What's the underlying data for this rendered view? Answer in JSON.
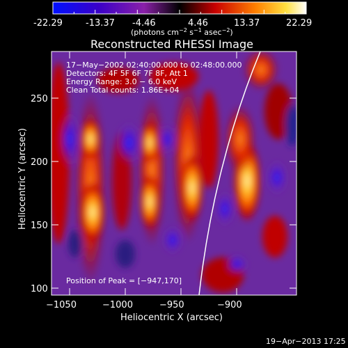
{
  "colorbar": {
    "ticks": [
      "-22.29",
      "-13.37",
      "-4.46",
      "4.46",
      "13.37",
      "22.29"
    ],
    "unit_prefix": "(photons cm",
    "unit_sup1": "−2",
    "unit_mid1": " s",
    "unit_sup2": "−1",
    "unit_mid2": " asec",
    "unit_sup3": "−2",
    "unit_suffix": ")"
  },
  "plot": {
    "title": "Reconstructed RHESSI Image",
    "xlabel": "Heliocentric X (arcsec)",
    "ylabel": "Heliocentric Y (arcsec)",
    "xticks": [
      "−1050",
      "−1000",
      "−950",
      "−900"
    ],
    "yticks": [
      "250",
      "200",
      "150",
      "100"
    ],
    "info": [
      "17−May−2002 02:40:00.000 to 02:48:00.000",
      "Detectors: 4F 5F 6F 7F 8F, Att 1",
      "Energy Range: 3.0 − 6.0 keV",
      "Clean     Total counts: 1.86E+04"
    ],
    "peak": "Position of Peak = [−947,170]"
  },
  "footer": {
    "date": "19−Apr−2013 17:25"
  }
}
